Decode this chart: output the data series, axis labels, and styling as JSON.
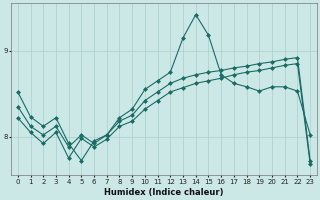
{
  "xlabel": "Humidex (Indice chaleur)",
  "bg_color": "#cce8e6",
  "line_color": "#1a6b65",
  "grid_color": "#aacfcc",
  "xlim": [
    -0.5,
    23.5
  ],
  "ylim": [
    7.55,
    9.55
  ],
  "yticks": [
    8,
    9
  ],
  "xticks": [
    0,
    1,
    2,
    3,
    4,
    5,
    6,
    7,
    8,
    9,
    10,
    11,
    12,
    13,
    14,
    15,
    16,
    17,
    18,
    19,
    20,
    21,
    22,
    23
  ],
  "line1_x": [
    0,
    1,
    2,
    3,
    4,
    5,
    6,
    7,
    8,
    9,
    10,
    11,
    12,
    13,
    14,
    15,
    16,
    17,
    18,
    19,
    20,
    21,
    22,
    23
  ],
  "line1_y": [
    8.52,
    8.23,
    8.12,
    8.22,
    7.92,
    7.72,
    7.95,
    8.02,
    8.22,
    8.32,
    8.55,
    8.65,
    8.75,
    9.15,
    9.42,
    9.18,
    8.72,
    8.62,
    8.58,
    8.53,
    8.58,
    8.58,
    8.53,
    8.02
  ],
  "line2_x": [
    0,
    1,
    2,
    3,
    4,
    5,
    6,
    7,
    8,
    9,
    10,
    11,
    12,
    13,
    14,
    15,
    16,
    17,
    18,
    19,
    20,
    21,
    22,
    23
  ],
  "line2_y": [
    8.35,
    8.12,
    8.02,
    8.12,
    7.88,
    8.02,
    7.92,
    8.02,
    8.18,
    8.25,
    8.42,
    8.52,
    8.62,
    8.68,
    8.72,
    8.75,
    8.77,
    8.8,
    8.82,
    8.85,
    8.87,
    8.9,
    8.92,
    7.72
  ],
  "line3_x": [
    0,
    1,
    2,
    3,
    4,
    5,
    6,
    7,
    8,
    9,
    10,
    11,
    12,
    13,
    14,
    15,
    16,
    17,
    18,
    19,
    20,
    21,
    22,
    23
  ],
  "line3_y": [
    8.22,
    8.05,
    7.92,
    8.05,
    7.75,
    7.98,
    7.88,
    7.97,
    8.12,
    8.18,
    8.32,
    8.42,
    8.52,
    8.57,
    8.62,
    8.65,
    8.68,
    8.72,
    8.75,
    8.77,
    8.8,
    8.83,
    8.85,
    7.68
  ]
}
